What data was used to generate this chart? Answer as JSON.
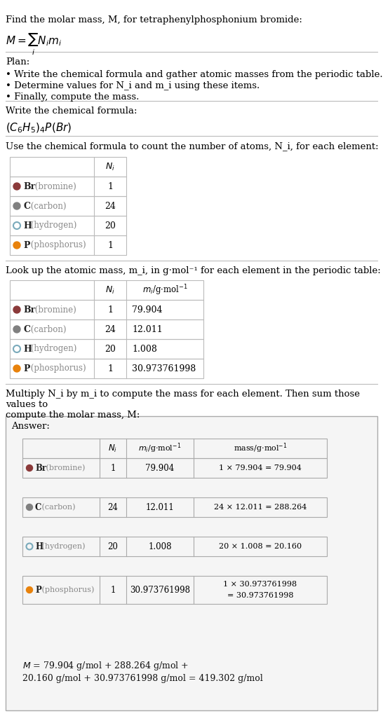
{
  "title_text": "Find the molar mass, M, for tetraphenylphosphonium bromide:",
  "formula_display": "M = ∑ N_i m_i",
  "plan_header": "Plan:",
  "plan_bullets": [
    "• Write the chemical formula and gather atomic masses from the periodic table.",
    "• Determine values for N_i and m_i using these items.",
    "• Finally, compute the mass."
  ],
  "chem_formula_header": "Write the chemical formula:",
  "chem_formula": "(C₆H₅)₄P(Br)",
  "table1_header": "Use the chemical formula to count the number of atoms, N_i, for each element:",
  "table2_header": "Look up the atomic mass, m_i, in g·mol⁻¹ for each element in the periodic table:",
  "table3_header": "Multiply N_i by m_i to compute the mass for each element. Then sum those values to\ncompute the molar mass, M:",
  "elements": [
    "Br (bromine)",
    "C (carbon)",
    "H (hydrogen)",
    "P (phosphorus)"
  ],
  "element_short": [
    "Br",
    "C",
    "H",
    "P"
  ],
  "dot_colors": [
    "#8B3A3A",
    "#808080",
    "#C8E0F0",
    "#E8820C"
  ],
  "dot_filled": [
    true,
    true,
    false,
    true
  ],
  "N_i": [
    1,
    24,
    20,
    1
  ],
  "m_i": [
    "79.904",
    "12.011",
    "1.008",
    "30.973761998"
  ],
  "mass_calc": [
    "1 × 79.904 = 79.904",
    "24 × 12.011 = 288.264",
    "20 × 1.008 = 20.160",
    "1 × 30.973761998\n= 30.973761998"
  ],
  "answer_label": "Answer:",
  "final_eq": "M = 79.904 g/mol + 288.264 g/mol +\n20.160 g/mol + 30.973761998 g/mol = 419.302 g/mol",
  "bg_color": "#FFFFFF",
  "table_bg": "#FFFFFF",
  "answer_bg": "#F8F8F8",
  "border_color": "#CCCCCC",
  "text_color": "#000000",
  "light_text": "#888888",
  "sep_color": "#AAAAAA"
}
